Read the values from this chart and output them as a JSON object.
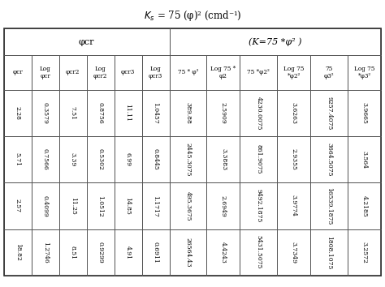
{
  "title": "$K_s$ = 75 (φ)² (cmd⁻¹)",
  "col_header_row1_left": "φcr",
  "col_header_row1_right": "( K=75 *φ² )",
  "col_headers": [
    "φcr",
    "Log\nφcr",
    "φcr2",
    "Log\nφcr2",
    "φcr3",
    "Log\nφcr3",
    "75 * φ²",
    "Log 75 *\nφ2",
    "75 *φ2²",
    "Log 75\n*φ2²",
    "75\nφ3²",
    "Log 75\n*φ3²"
  ],
  "rows": [
    [
      "2.28",
      "0.3579",
      "7.51",
      "0.8756",
      "11.11",
      "1.0457",
      "389.88",
      "2.5909",
      "4230.0075",
      "3.6263",
      "9257.4075",
      "3.9665"
    ],
    [
      "5.71",
      "0.7566",
      "3.39",
      "0.5302",
      "6.99",
      "0.8445",
      "2445.3075",
      "3.3883",
      "861.9075",
      "2.9355",
      "3664.5075",
      "3.564"
    ],
    [
      "2.57",
      "0.4099",
      "11.25",
      "1.0512",
      "14.85",
      "1.1717",
      "495.3675",
      "2.6949",
      "9492.1875",
      "3.9774",
      "16539.1875",
      "4.2185"
    ],
    [
      "18.82",
      "1.2746",
      "8.51",
      "0.9299",
      "4.91",
      "0.6911",
      "26564.43",
      "4.4243",
      "5431.5075",
      "3.7349",
      "1808.1075",
      "3.2572"
    ]
  ],
  "bg_color": "#ffffff",
  "text_color": "#000000",
  "header_bg": "#f0f0f0",
  "line_color": "#555555"
}
